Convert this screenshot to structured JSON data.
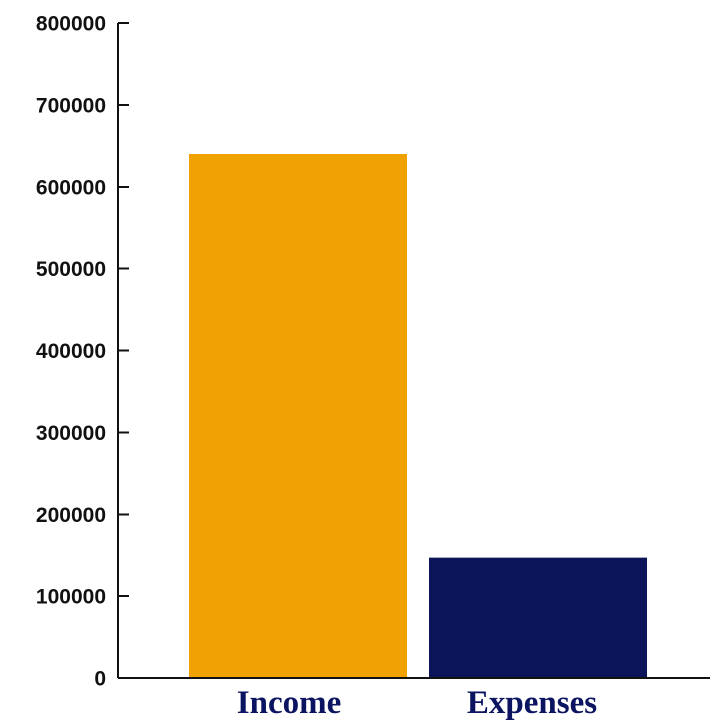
{
  "chart_data": {
    "type": "bar",
    "categories": [
      "Income",
      "Expenses"
    ],
    "values": [
      640000,
      147000
    ],
    "title": "",
    "xlabel": "",
    "ylabel": "",
    "ylim": [
      0,
      800000
    ],
    "yticks": [
      "0",
      "100000",
      "200000",
      "300000",
      "400000",
      "500000",
      "600000",
      "700000",
      "800000"
    ],
    "colors": [
      "#f0a202",
      "#0b1459"
    ],
    "x_label_color": "#0b1460",
    "grid": false,
    "legend": "none"
  }
}
